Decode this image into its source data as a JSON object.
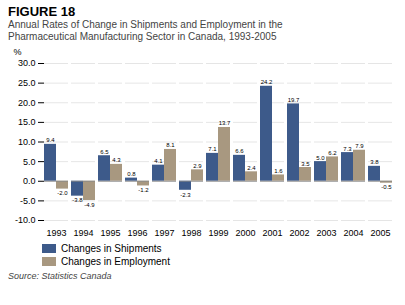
{
  "chart_data": {
    "type": "bar",
    "title": "FIGURE 18",
    "subtitle": "Annual Rates of Change in Shipments and Employment in the\nPharmaceutical Manufacturing Sector in Canada, 1993-2005",
    "source": "Source: Statistics Canada",
    "ylabel": "%",
    "categories": [
      "1993",
      "1994",
      "1995",
      "1996",
      "1997",
      "1998",
      "1999",
      "2000",
      "2001",
      "2002",
      "2003",
      "2004",
      "2005"
    ],
    "series": [
      {
        "name": "Changes in Shipments",
        "color": "#3d5a8a",
        "values": [
          9.4,
          -3.8,
          6.5,
          0.8,
          4.1,
          -2.3,
          7.1,
          6.6,
          24.2,
          19.7,
          5.0,
          7.3,
          3.8
        ],
        "value_labels": [
          "9.4",
          "-3.8",
          "6.5",
          "0.8",
          "4.1",
          "-2.3",
          "7.1",
          "6.6",
          "24.2",
          "19.7",
          "5.0",
          "7.3",
          "3.8"
        ]
      },
      {
        "name": "Changes in Employment",
        "color": "#a89880",
        "values": [
          -2.0,
          -4.9,
          4.3,
          -1.2,
          8.1,
          2.9,
          13.7,
          2.4,
          1.6,
          3.5,
          6.2,
          7.9,
          -0.5
        ],
        "value_labels": [
          "-2.0",
          "-4.9",
          "4.3",
          "-1.2",
          "8.1",
          "2.9",
          "13.7",
          "2.4",
          "1.6",
          "3.5",
          "6.2",
          "7.9",
          "-0.5"
        ]
      }
    ],
    "ylim": [
      -10.0,
      30.0
    ],
    "yticks": [
      {
        "value": -10.0,
        "label": "-10.0"
      },
      {
        "value": -5.0,
        "label": "-5.0"
      },
      {
        "value": 0.0,
        "label": "0.0"
      },
      {
        "value": 5.0,
        "label": "5.0"
      },
      {
        "value": 10.0,
        "label": "10.0"
      },
      {
        "value": 15.0,
        "label": "15.0"
      },
      {
        "value": 20.0,
        "label": "20.0"
      },
      {
        "value": 25.0,
        "label": "25.0"
      },
      {
        "value": 30.0,
        "label": "30.0"
      }
    ],
    "grid": true,
    "legend": "lower left",
    "data_labels": true
  }
}
